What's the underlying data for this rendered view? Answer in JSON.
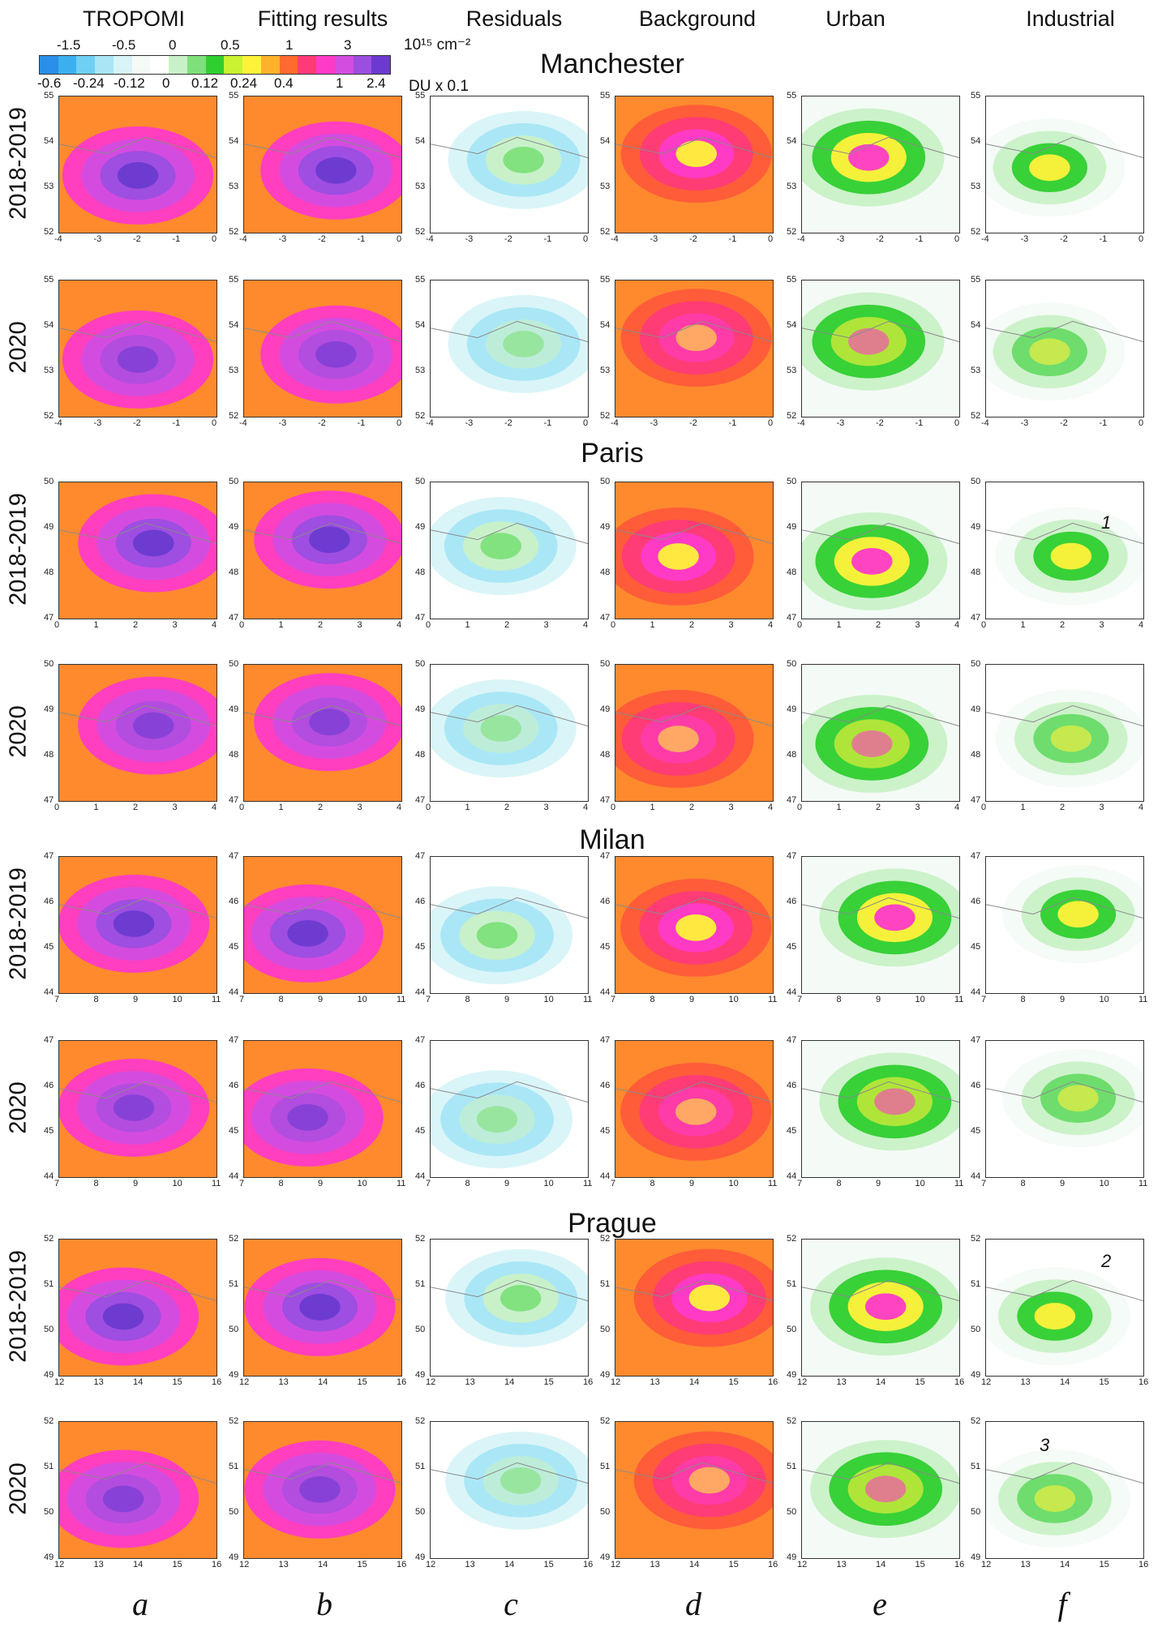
{
  "columns": [
    {
      "title": "TROPOMI",
      "letter": "a"
    },
    {
      "title": "Fitting results",
      "letter": "b"
    },
    {
      "title": "Residuals",
      "letter": "c"
    },
    {
      "title": "Background",
      "letter": "d"
    },
    {
      "title": "Urban",
      "letter": "e"
    },
    {
      "title": "Industrial",
      "letter": "f"
    }
  ],
  "colorbar": {
    "top_ticks": [
      "-1.5",
      "-0.5",
      "0",
      "0.5",
      "1",
      "3"
    ],
    "bottom_ticks": [
      "-0.6",
      "-0.24",
      "-0.12",
      "0",
      "0.12",
      "0.24",
      "0.4",
      "1",
      "2.4"
    ],
    "unit_top": "10¹⁵ cm⁻²",
    "unit_bottom": "DU x  0.1",
    "colors": [
      "#2a8fe8",
      "#3bb0f0",
      "#6fd0f4",
      "#a8e6f6",
      "#d8f4f8",
      "#f4fbf6",
      "#ffffff",
      "#c9f1c7",
      "#7ee07a",
      "#2fcf2f",
      "#c9f231",
      "#fff23a",
      "#ffb12a",
      "#ff6a2e",
      "#ff3a78",
      "#ff3ac8",
      "#d24de0",
      "#9b4ee0",
      "#6c3ad0"
    ]
  },
  "blocks": [
    {
      "city": "Manchester",
      "xticks": [
        "-4",
        "-3",
        "-2",
        "-1",
        "0"
      ],
      "yticks": [
        "55",
        "54",
        "53",
        "52"
      ]
    },
    {
      "city": "Paris",
      "xticks": [
        "0",
        "1",
        "2",
        "3",
        "4"
      ],
      "yticks": [
        "50",
        "49",
        "48",
        "47"
      ]
    },
    {
      "city": "Milan",
      "xticks": [
        "7",
        "8",
        "9",
        "10",
        "11"
      ],
      "yticks": [
        "47",
        "46",
        "45",
        "44"
      ]
    },
    {
      "city": "Prague",
      "xticks": [
        "12",
        "13",
        "14",
        "15",
        "16"
      ],
      "yticks": [
        "52",
        "51",
        "50",
        "49"
      ]
    }
  ],
  "periods": [
    "2018-2019",
    "2020"
  ],
  "annotations": [
    "1",
    "2",
    "3"
  ]
}
